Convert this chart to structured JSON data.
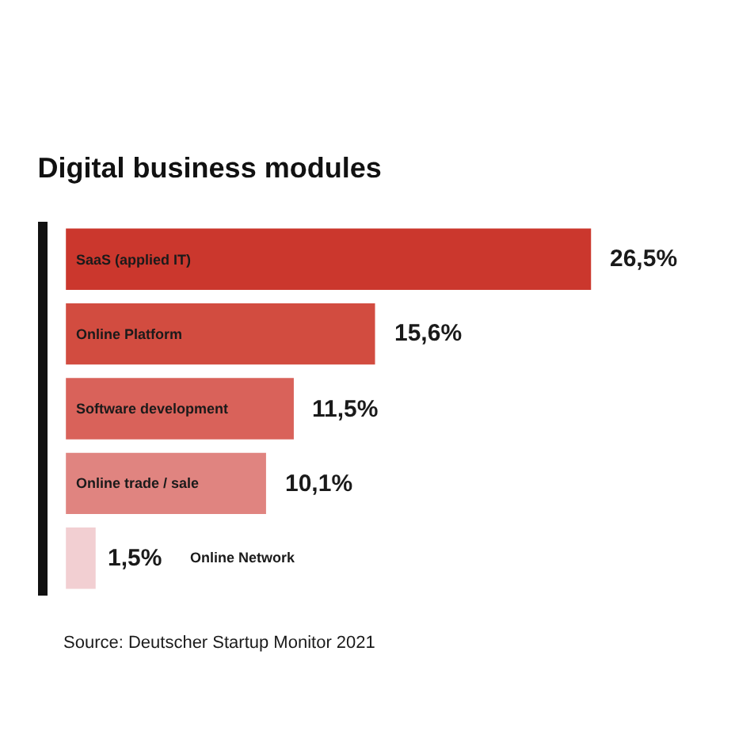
{
  "chart_data": {
    "type": "bar",
    "orientation": "horizontal",
    "title": "Digital business modules",
    "categories": [
      "SaaS (applied IT)",
      "Online Platform",
      "Software development",
      "Online trade / sale",
      "Online Network"
    ],
    "values": [
      26.5,
      15.6,
      11.5,
      10.1,
      1.5
    ],
    "colors": [
      "#cb372d",
      "#d24c40",
      "#d9625a",
      "#e08480",
      "#f2cfd2"
    ],
    "value_labels": [
      "26,5%",
      "15,6%",
      "11,5%",
      "10,1%",
      "1,5%"
    ],
    "annotations": [
      "Source: Deutscher Startup Monitor 2021"
    ]
  }
}
